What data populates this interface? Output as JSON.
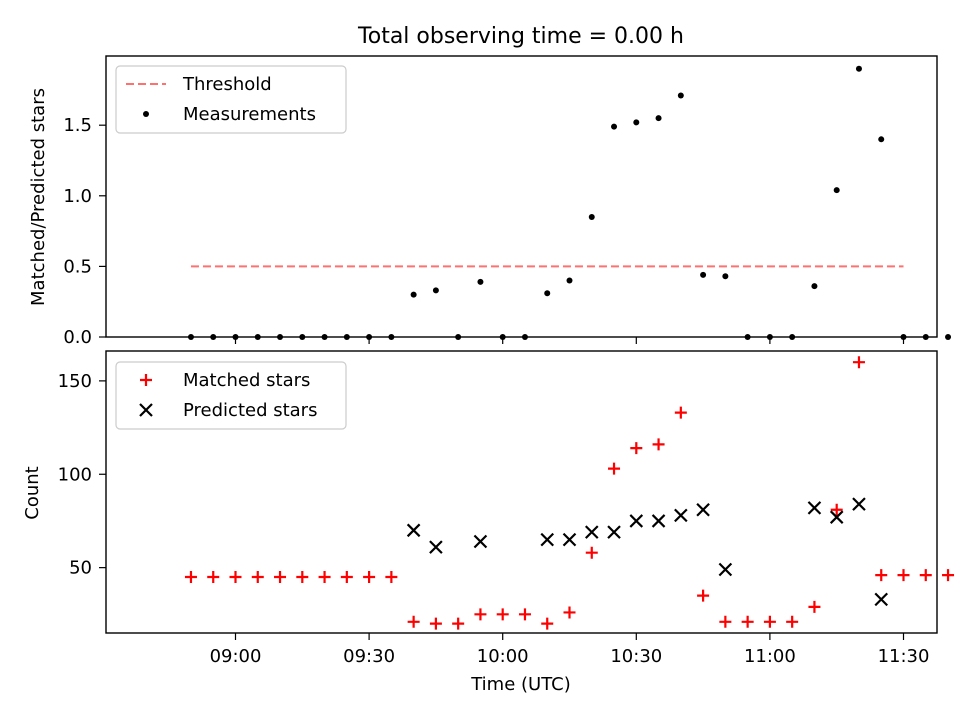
{
  "title": "Total observing time = 0.00 h",
  "chart_data": [
    {
      "type": "scatter",
      "ylabel": "Matched/Predicted stars",
      "ylim": [
        0,
        1.99
      ],
      "yticks": [
        0.0,
        0.5,
        1.0,
        1.5
      ],
      "ytick_labels": [
        "0.0",
        "0.5",
        "1.0",
        "1.5"
      ],
      "legend_position": "top-left",
      "threshold": {
        "name": "Threshold",
        "value": 0.5,
        "x_start": "08:50",
        "x_end": "11:30",
        "color": "#ff7070"
      },
      "series": [
        {
          "name": "Measurements",
          "color": "#000000",
          "marker": "dot",
          "points": [
            [
              "08:50",
              0
            ],
            [
              "08:55",
              0
            ],
            [
              "09:00",
              0
            ],
            [
              "09:05",
              0
            ],
            [
              "09:10",
              0
            ],
            [
              "09:15",
              0
            ],
            [
              "09:20",
              0
            ],
            [
              "09:25",
              0
            ],
            [
              "09:30",
              0
            ],
            [
              "09:35",
              0
            ],
            [
              "09:40",
              0.3
            ],
            [
              "09:45",
              0.33
            ],
            [
              "09:50",
              0
            ],
            [
              "09:55",
              0.39
            ],
            [
              "10:00",
              0
            ],
            [
              "10:05",
              0
            ],
            [
              "10:10",
              0.31
            ],
            [
              "10:15",
              0.4
            ],
            [
              "10:20",
              0.85
            ],
            [
              "10:25",
              1.49
            ],
            [
              "10:30",
              1.52
            ],
            [
              "10:35",
              1.55
            ],
            [
              "10:40",
              1.71
            ],
            [
              "10:45",
              0.44
            ],
            [
              "10:50",
              0.43
            ],
            [
              "10:55",
              0
            ],
            [
              "11:00",
              0
            ],
            [
              "11:05",
              0
            ],
            [
              "11:10",
              0.36
            ],
            [
              "11:15",
              1.04
            ],
            [
              "11:20",
              1.9
            ],
            [
              "11:25",
              1.4
            ],
            [
              "11:30",
              0
            ],
            [
              "11:35",
              0
            ],
            [
              "11:40",
              0
            ]
          ]
        }
      ]
    },
    {
      "type": "scatter",
      "xlabel": "Time (UTC)",
      "ylabel": "Count",
      "ylim": [
        15,
        166
      ],
      "yticks": [
        50,
        100,
        150
      ],
      "ytick_labels": [
        "50",
        "100",
        "150"
      ],
      "xticks": [
        "09:00",
        "09:30",
        "10:00",
        "10:30",
        "11:00",
        "11:30"
      ],
      "legend_position": "top-left",
      "series": [
        {
          "name": "Matched stars",
          "color": "#ff0000",
          "marker": "plus",
          "points": [
            [
              "08:50",
              45
            ],
            [
              "08:55",
              45
            ],
            [
              "09:00",
              45
            ],
            [
              "09:05",
              45
            ],
            [
              "09:10",
              45
            ],
            [
              "09:15",
              45
            ],
            [
              "09:20",
              45
            ],
            [
              "09:25",
              45
            ],
            [
              "09:30",
              45
            ],
            [
              "09:35",
              45
            ],
            [
              "09:40",
              21
            ],
            [
              "09:45",
              20
            ],
            [
              "09:50",
              20
            ],
            [
              "09:55",
              25
            ],
            [
              "10:00",
              25
            ],
            [
              "10:05",
              25
            ],
            [
              "10:10",
              20
            ],
            [
              "10:15",
              26
            ],
            [
              "10:20",
              58
            ],
            [
              "10:25",
              103
            ],
            [
              "10:30",
              114
            ],
            [
              "10:35",
              116
            ],
            [
              "10:40",
              133
            ],
            [
              "10:45",
              35
            ],
            [
              "10:50",
              21
            ],
            [
              "10:55",
              21
            ],
            [
              "11:00",
              21
            ],
            [
              "11:05",
              21
            ],
            [
              "11:10",
              29
            ],
            [
              "11:15",
              81
            ],
            [
              "11:20",
              160
            ],
            [
              "11:25",
              46
            ],
            [
              "11:30",
              46
            ],
            [
              "11:35",
              46
            ],
            [
              "11:40",
              46
            ]
          ]
        },
        {
          "name": "Predicted stars",
          "color": "#000000",
          "marker": "x",
          "points": [
            [
              "09:40",
              70
            ],
            [
              "09:45",
              61
            ],
            [
              "09:55",
              64
            ],
            [
              "10:10",
              65
            ],
            [
              "10:15",
              65
            ],
            [
              "10:20",
              69
            ],
            [
              "10:25",
              69
            ],
            [
              "10:30",
              75
            ],
            [
              "10:35",
              75
            ],
            [
              "10:40",
              78
            ],
            [
              "10:45",
              81
            ],
            [
              "10:50",
              49
            ],
            [
              "11:10",
              82
            ],
            [
              "11:15",
              77
            ],
            [
              "11:20",
              84
            ],
            [
              "11:25",
              33
            ]
          ]
        }
      ]
    }
  ]
}
